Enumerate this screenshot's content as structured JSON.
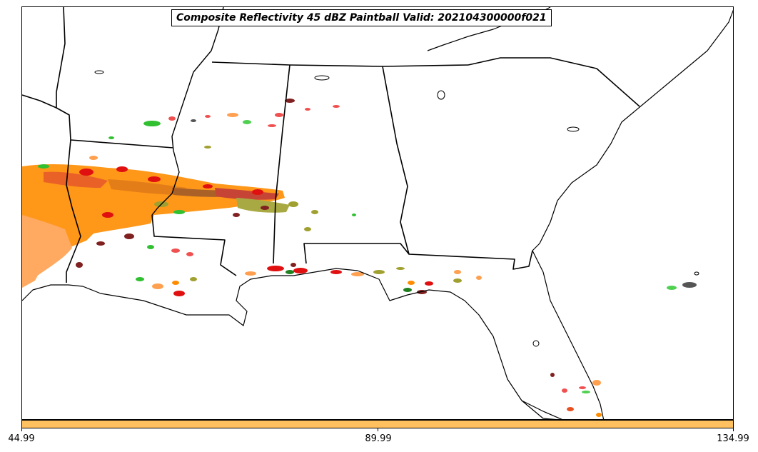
{
  "title": "Composite Reflectivity 45 dBZ Paintball Valid: 202104300000f021",
  "colorbar": {
    "color": "#ffc060",
    "ticks": [
      "44.99",
      "89.99",
      "134.99"
    ]
  },
  "colors": {
    "orange": "#ff8c00",
    "light_orange": "#ffa050",
    "red": "#e01010",
    "green": "#30c030",
    "olive": "#a0a030",
    "maroon": "#802020",
    "gray": "#555555",
    "boundary": "#000000"
  }
}
